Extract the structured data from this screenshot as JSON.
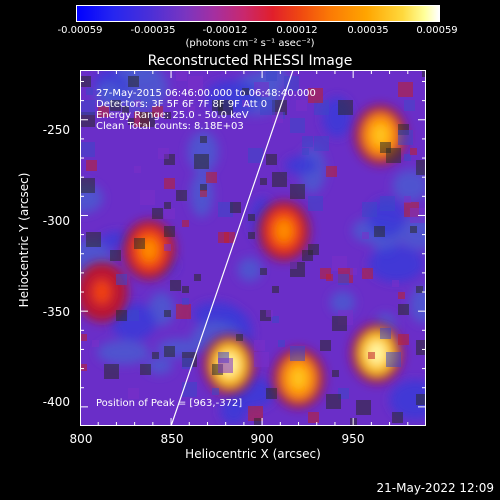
{
  "colorbar": {
    "ticks": [
      "-0.00059",
      "-0.00035",
      "-0.00012",
      "0.00012",
      "0.00035",
      "0.00059"
    ],
    "label": "(photons cm⁻² s⁻¹ asec⁻²)"
  },
  "annotations": {
    "line1": "27-May-2015 06:46:00.000 to 06:48:40.000",
    "line2": "Detectors: 3F 5F 6F 7F 8F 9F Att 0",
    "line3": "Energy Range: 25.0 - 50.0 keV",
    "line4": "Clean     Total counts: 8.18E+03",
    "peak": "Position of Peak = [963,-372]"
  },
  "timestamp": "21-May-2022 12:09",
  "chart_data": {
    "type": "heatmap",
    "title": "Reconstructed RHESSI Image",
    "xlabel": "Heliocentric X (arcsec)",
    "ylabel": "Heliocentric Y (arcsec)",
    "xlim": [
      800,
      990
    ],
    "ylim": [
      -410,
      -224
    ],
    "xticks": [
      "800",
      "850",
      "900",
      "950"
    ],
    "yticks": [
      "-250",
      "-300",
      "-350",
      "-400"
    ],
    "colorbar_range": [
      -0.00059,
      0.00059
    ],
    "peak_position": [
      963,
      -372
    ],
    "hot_regions": [
      {
        "x": 882,
        "y": -378,
        "value": 0.00059
      },
      {
        "x": 963,
        "y": -372,
        "value": 0.00059
      },
      {
        "x": 965,
        "y": -258,
        "value": 0.00045
      },
      {
        "x": 912,
        "y": -308,
        "value": 0.00035
      },
      {
        "x": 838,
        "y": -318,
        "value": 0.0003
      },
      {
        "x": 812,
        "y": -340,
        "value": 0.0002
      },
      {
        "x": 920,
        "y": -385,
        "value": 0.00045
      }
    ],
    "limb_line": [
      [
        850,
        -410
      ],
      [
        917,
        -224
      ]
    ],
    "grid": false
  }
}
